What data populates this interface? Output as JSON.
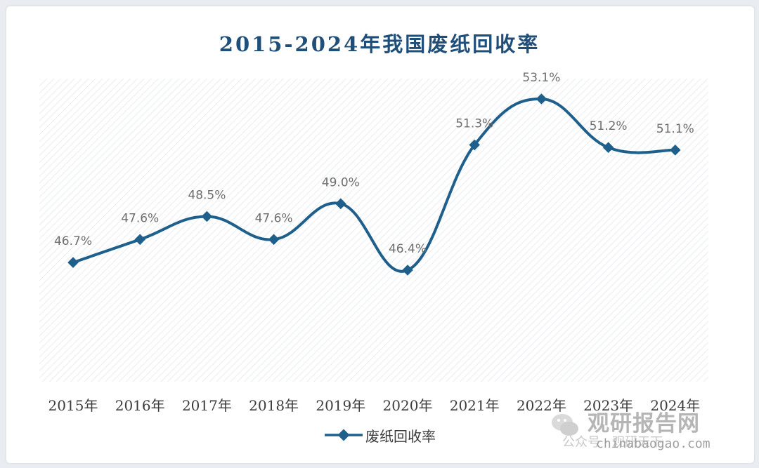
{
  "colors": {
    "line": "#1f5f8b",
    "title": "#1f4e79",
    "plot_hatch": "#e3e7ec"
  },
  "chart_data": {
    "type": "line",
    "title": "2015-2024年我国废纸回收率",
    "categories": [
      "2015年",
      "2016年",
      "2017年",
      "2018年",
      "2019年",
      "2020年",
      "2021年",
      "2022年",
      "2023年",
      "2024年"
    ],
    "series": [
      {
        "name": "废纸回收率",
        "values": [
          46.7,
          47.6,
          48.5,
          47.6,
          49.0,
          46.4,
          51.3,
          53.1,
          51.2,
          51.1
        ],
        "data_labels": [
          "46.7%",
          "47.6%",
          "48.5%",
          "47.6%",
          "49.0%",
          "46.4%",
          "51.3%",
          "53.1%",
          "51.2%",
          "51.1%"
        ],
        "marker": "diamond",
        "smooth": true
      }
    ],
    "y_axis_visible": false,
    "grid": false,
    "legend_position": "bottom"
  },
  "legend": {
    "label": "废纸回收率"
  },
  "watermark": {
    "name": "观研报告网",
    "subtitle": "公众号 · 观研天下",
    "url": "chinabaogao.com"
  }
}
